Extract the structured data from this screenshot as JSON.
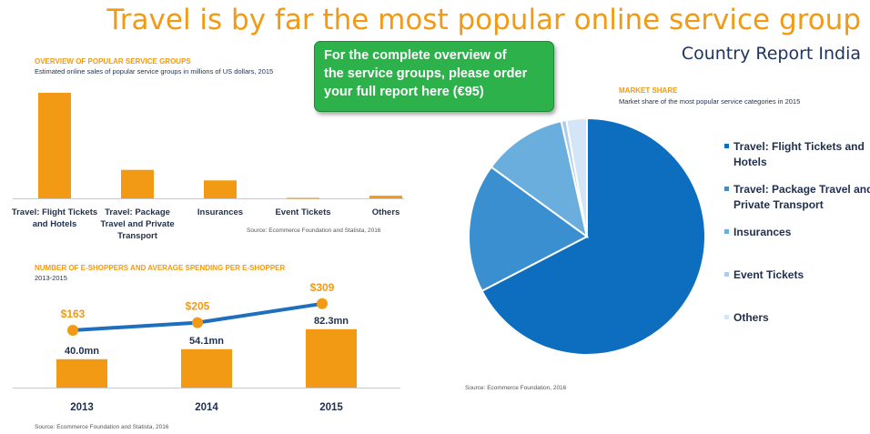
{
  "title": "Travel is by far the most popular online service group",
  "subtitle": "Country Report India",
  "promo": {
    "lines": [
      "For the complete overview of",
      "the service groups, please order",
      "your full report here (€95)"
    ]
  },
  "overview": {
    "title": "OVERVIEW OF POPULAR SERVICE GROUPS",
    "subtitle": "Estimated online sales of popular service groups in millions of US dollars, 2015",
    "source": "Source: Ecommerce Foundation and Statista, 2016"
  },
  "shoppers": {
    "title": "NUMBER OF E-SHOPPERS AND AVERAGE SPENDING PER E-SHOPPER",
    "subtitle": "2013-2015",
    "source": "Source: Ecommerce Foundation and Statista, 2016"
  },
  "market": {
    "title": "MARKET SHARE",
    "subtitle": "Market share of the most popular service categories in 2015",
    "source": "Source: Ecommerce Foundation, 2016"
  },
  "colors": {
    "accent": "#f39a14",
    "title_navy": "#1f3460",
    "line": "#1f6fbf",
    "promo": "#2db14b"
  },
  "chart_data": [
    {
      "type": "bar",
      "categories": [
        [
          "Travel: Flight Tickets",
          "and Hotels"
        ],
        [
          "Travel: Package",
          "Travel and Private",
          "Transport"
        ],
        [
          "Insurances"
        ],
        [
          "Event Tickets"
        ],
        [
          "Others"
        ]
      ],
      "values": [
        100,
        27,
        17,
        0.5,
        2.5
      ],
      "ylim": [
        0,
        100
      ]
    },
    {
      "type": "bar",
      "categories": [
        "2013",
        "2014",
        "2015"
      ],
      "series": [
        {
          "values": [
            40.0,
            54.1,
            82.3
          ],
          "labels": [
            "40.0mn",
            "54.1mn",
            "82.3mn"
          ]
        },
        {
          "values": [
            163,
            205,
            309
          ],
          "labels": [
            "$163",
            "$205",
            "$309"
          ]
        }
      ]
    },
    {
      "type": "pie",
      "labels": [
        "Travel: Flight Tickets and Hotels",
        "Travel: Package Travel and Private Transport",
        "Insurances",
        "Event Tickets",
        "Others"
      ],
      "values": [
        67.4,
        17.6,
        11.5,
        0.7,
        2.8
      ],
      "colors": [
        "#0d6dbf",
        "#3a8fd0",
        "#6aaede",
        "#a8cdee",
        "#d3e5f6"
      ]
    }
  ]
}
